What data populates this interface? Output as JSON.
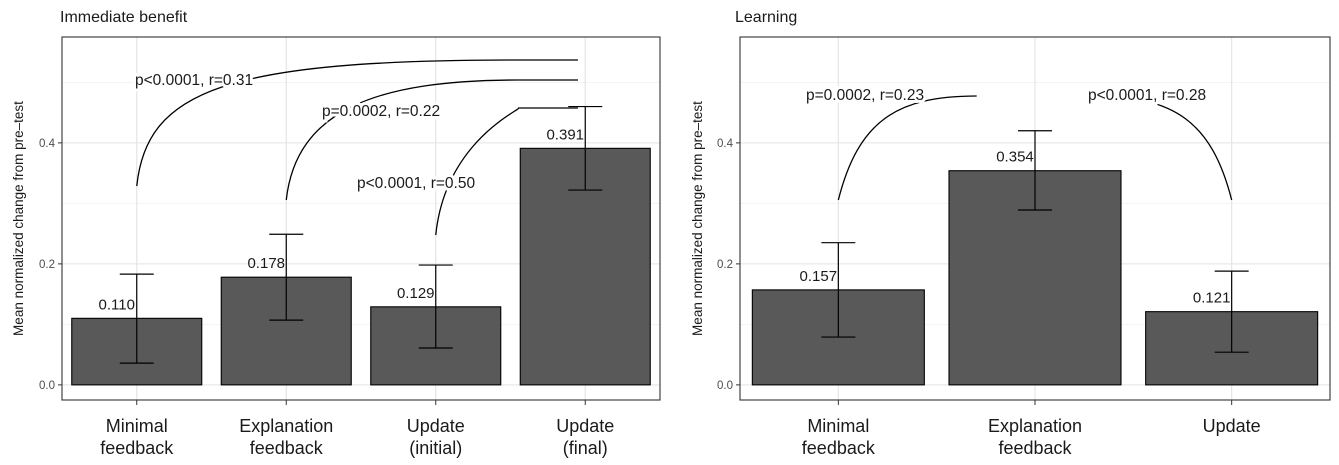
{
  "chart_data": [
    {
      "type": "bar",
      "title": "Immediate benefit",
      "ylabel": "Mean normalized change from pre–test",
      "ylim": [
        -0.025,
        0.575
      ],
      "yticks": [
        0.0,
        0.2,
        0.4
      ],
      "ytick_labels": [
        "0.0",
        "0.2",
        "0.4"
      ],
      "categories": [
        [
          "Minimal",
          "feedback"
        ],
        [
          "Explanation",
          "feedback"
        ],
        [
          "Update",
          "(initial)"
        ],
        [
          "Update",
          "(final)"
        ]
      ],
      "values": [
        0.11,
        0.178,
        0.129,
        0.391
      ],
      "value_labels": [
        "0.110",
        "0.178",
        "0.129",
        "0.391"
      ],
      "error_low": [
        0.036,
        0.107,
        0.061,
        0.322
      ],
      "error_high": [
        0.183,
        0.249,
        0.198,
        0.46
      ],
      "bar_color": "#595959",
      "grid": true,
      "annotations": [
        {
          "text": "p<0.0001, r=0.31",
          "from": 0,
          "to": 3
        },
        {
          "text": "p=0.0002, r=0.22",
          "from": 1,
          "to": 3
        },
        {
          "text": "p<0.0001, r=0.50",
          "from": 2,
          "to": 3
        }
      ]
    },
    {
      "type": "bar",
      "title": "Learning",
      "ylabel": "Mean normalized change from pre–test",
      "ylim": [
        -0.025,
        0.575
      ],
      "yticks": [
        0.0,
        0.2,
        0.4
      ],
      "ytick_labels": [
        "0.0",
        "0.2",
        "0.4"
      ],
      "categories": [
        [
          "Minimal",
          "feedback"
        ],
        [
          "Explanation",
          "feedback"
        ],
        [
          "Update",
          ""
        ]
      ],
      "values": [
        0.157,
        0.354,
        0.121
      ],
      "value_labels": [
        "0.157",
        "0.354",
        "0.121"
      ],
      "error_low": [
        0.079,
        0.289,
        0.054
      ],
      "error_high": [
        0.235,
        0.42,
        0.188
      ],
      "bar_color": "#595959",
      "grid": true,
      "annotations": [
        {
          "text": "p=0.0002, r=0.23",
          "from": 0,
          "to": 1
        },
        {
          "text": "p<0.0001, r=0.28",
          "from": 1,
          "to": 2
        }
      ]
    }
  ]
}
